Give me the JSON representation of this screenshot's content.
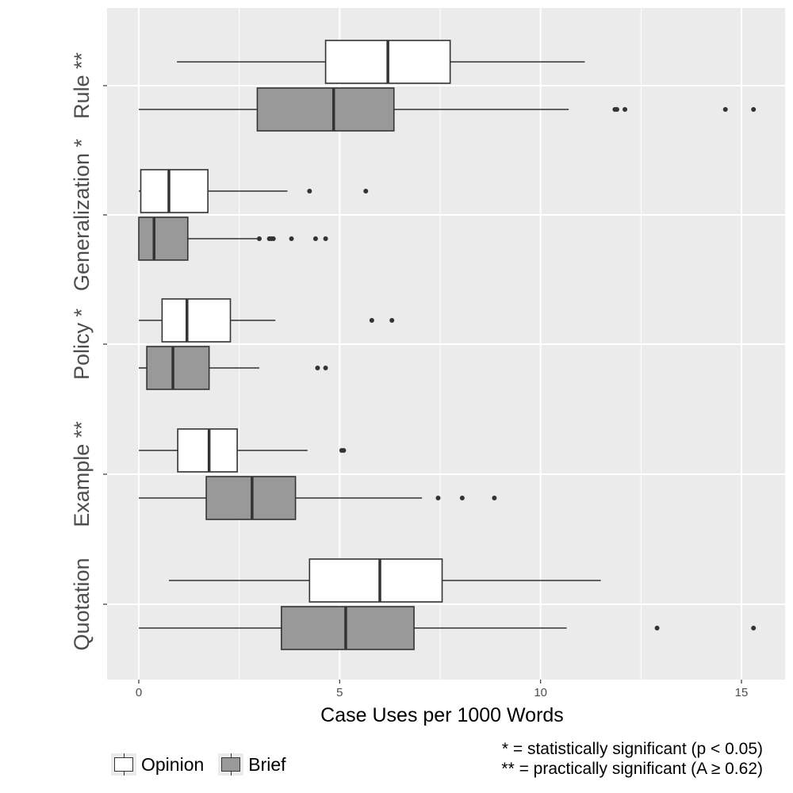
{
  "chart_data": {
    "type": "boxplot",
    "orientation": "horizontal",
    "xlabel": "Case Uses per 1000 Words",
    "xlim": [
      -0.8,
      16.0
    ],
    "xticks": [
      0,
      5,
      10,
      15
    ],
    "categories": [
      "Rule **",
      "Generalization *",
      "Policy *",
      "Example **",
      "Quotation"
    ],
    "series": [
      {
        "name": "Opinion",
        "fill": "#ffffff",
        "boxes": [
          {
            "category": "Rule **",
            "whisker_low": 0.95,
            "q1": 4.65,
            "median": 6.2,
            "q3": 7.75,
            "whisker_high": 11.1,
            "outliers": []
          },
          {
            "category": "Generalization *",
            "whisker_low": 0.0,
            "q1": 0.05,
            "median": 0.75,
            "q3": 1.72,
            "whisker_high": 3.7,
            "outliers": [
              4.25,
              5.65
            ]
          },
          {
            "category": "Policy *",
            "whisker_low": 0.0,
            "q1": 0.58,
            "median": 1.2,
            "q3": 2.28,
            "whisker_high": 3.4,
            "outliers": [
              5.8,
              6.3
            ]
          },
          {
            "category": "Example **",
            "whisker_low": 0.0,
            "q1": 0.97,
            "median": 1.75,
            "q3": 2.45,
            "whisker_high": 4.2,
            "outliers": [
              5.05,
              5.1
            ]
          },
          {
            "category": "Quotation",
            "whisker_low": 0.75,
            "q1": 4.25,
            "median": 6.0,
            "q3": 7.55,
            "whisker_high": 11.5,
            "outliers": []
          }
        ]
      },
      {
        "name": "Brief",
        "fill": "#999999",
        "boxes": [
          {
            "category": "Rule **",
            "whisker_low": 0.0,
            "q1": 2.95,
            "median": 4.85,
            "q3": 6.35,
            "whisker_high": 10.7,
            "outliers": [
              11.85,
              11.9,
              12.1,
              14.6,
              15.3
            ]
          },
          {
            "category": "Generalization *",
            "whisker_low": 0.0,
            "q1": 0.0,
            "median": 0.38,
            "q3": 1.22,
            "whisker_high": 3.0,
            "outliers": [
              3.0,
              3.25,
              3.3,
              3.35,
              3.8,
              4.4,
              4.65
            ]
          },
          {
            "category": "Policy *",
            "whisker_low": 0.0,
            "q1": 0.2,
            "median": 0.85,
            "q3": 1.75,
            "whisker_high": 3.0,
            "outliers": [
              4.45,
              4.65
            ]
          },
          {
            "category": "Example **",
            "whisker_low": 0.0,
            "q1": 1.68,
            "median": 2.82,
            "q3": 3.9,
            "whisker_high": 7.05,
            "outliers": [
              7.45,
              8.05,
              8.85
            ]
          },
          {
            "category": "Quotation",
            "whisker_low": 0.0,
            "q1": 3.55,
            "median": 5.15,
            "q3": 6.85,
            "whisker_high": 10.65,
            "outliers": [
              12.9,
              15.3
            ]
          }
        ]
      }
    ],
    "grid": true,
    "legend": {
      "position": "bottom-left",
      "entries": [
        "Opinion",
        "Brief"
      ]
    },
    "colors": {
      "panel": "#ebebeb",
      "grid": "#ffffff",
      "box_line": "#333333",
      "opinion": "#ffffff",
      "brief": "#999999"
    }
  },
  "notes": {
    "line1": "* = statistically significant (p < 0.05)",
    "line2": "** = practically significant (A ≥ 0.62)"
  }
}
